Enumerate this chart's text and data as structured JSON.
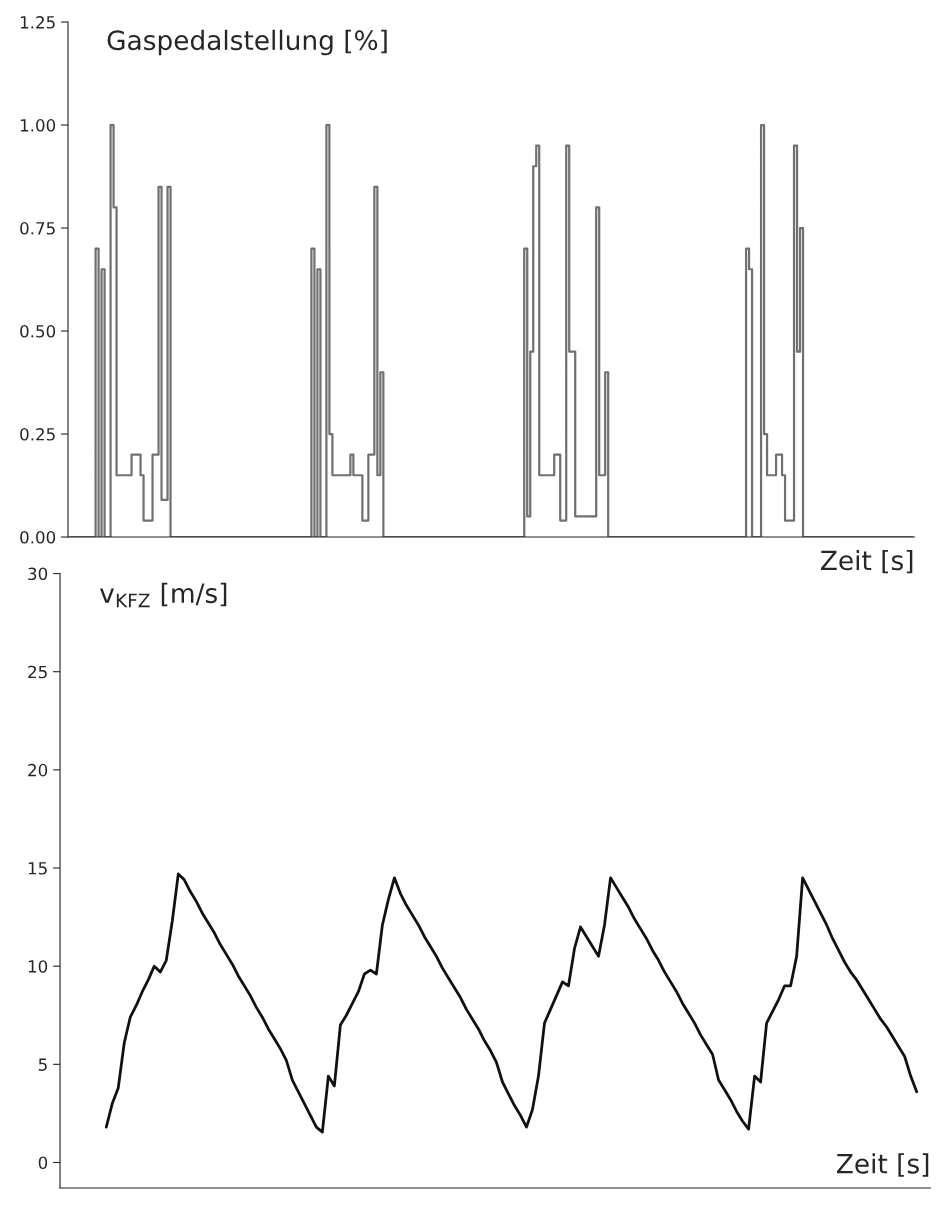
{
  "chart_data": [
    {
      "type": "step",
      "ylabel": "Gaspedalstellung [%]",
      "xlabel": "Zeit [s]",
      "ylim": [
        0,
        1.25
      ],
      "yticks": [
        {
          "value": 0,
          "label": "0.00"
        },
        {
          "value": 0.25,
          "label": "0.25"
        },
        {
          "value": 0.5,
          "label": "0.50"
        },
        {
          "value": 0.75,
          "label": "0.75"
        },
        {
          "value": 1,
          "label": "1.00"
        },
        {
          "value": 1.25,
          "label": "1.25"
        }
      ],
      "tick_labels": "y",
      "grid": false,
      "categories": [
        null,
        null,
        null,
        null,
        null,
        null,
        null,
        null,
        null,
        null,
        null,
        null,
        null,
        null,
        null,
        null,
        null,
        null,
        null,
        null,
        null,
        null,
        null,
        null,
        null,
        null,
        null,
        null,
        null,
        null,
        null,
        null,
        null,
        null,
        null,
        null,
        null,
        null,
        null,
        null,
        null,
        null,
        null,
        null,
        null,
        null,
        null,
        null,
        null,
        null,
        null,
        null,
        null,
        null,
        null,
        null,
        null,
        null,
        null,
        null,
        null,
        null,
        null,
        null,
        null,
        null,
        null,
        null,
        null,
        null,
        null,
        null,
        null,
        null,
        null,
        null,
        null,
        null,
        null,
        null,
        null,
        null,
        null,
        null,
        null,
        null,
        null,
        null,
        null,
        null,
        null,
        null,
        null,
        null,
        null,
        null,
        null,
        null,
        null,
        null,
        null,
        null,
        null,
        null,
        null,
        null,
        null,
        null,
        null,
        null,
        null,
        null,
        null,
        null,
        null,
        null,
        null,
        null,
        null,
        null,
        null,
        null,
        null,
        null,
        null,
        null,
        null,
        null,
        null,
        null,
        null,
        null,
        null,
        null,
        null,
        null,
        null,
        null,
        null,
        null,
        null,
        null,
        null,
        null,
        null,
        null,
        null,
        null,
        null,
        null,
        null,
        null,
        null,
        null,
        null,
        null,
        null,
        null,
        null,
        null,
        null,
        null,
        null,
        null,
        null,
        null,
        null,
        null,
        null,
        null,
        null,
        null,
        null,
        null,
        null,
        null,
        null,
        null,
        null,
        null,
        null,
        null,
        null,
        null,
        null,
        null,
        null,
        null,
        null,
        null,
        null,
        null,
        null,
        null,
        null,
        null,
        null,
        null,
        null,
        null,
        null,
        null,
        null,
        null,
        null,
        null,
        null,
        null,
        null,
        null,
        null,
        null,
        null,
        null,
        null,
        null,
        null,
        null,
        null,
        null,
        null,
        null,
        null,
        null,
        null,
        null,
        null,
        null,
        null,
        null,
        null,
        null,
        null,
        null,
        null,
        null,
        null,
        null,
        null,
        null,
        null,
        null,
        null,
        null,
        null,
        null,
        null,
        null,
        null,
        null,
        null,
        null,
        null,
        null,
        null,
        null,
        null,
        null,
        null,
        null,
        null,
        null,
        null,
        null,
        null,
        null,
        null,
        null,
        null,
        null,
        null,
        null,
        null,
        null,
        null,
        null,
        null,
        null,
        null,
        null,
        null,
        null
      ],
      "series": [
        {
          "color": "#707070",
          "values": [
            0,
            0,
            0,
            0,
            0,
            0,
            0,
            0,
            0,
            0.7,
            0,
            0.65,
            0,
            0,
            1.0,
            0.8,
            0.15,
            0.15,
            0.15,
            0.15,
            0.15,
            0.2,
            0.2,
            0.2,
            0.15,
            0.04,
            0.04,
            0.04,
            0.2,
            0.2,
            0.85,
            0.09,
            0.09,
            0.85,
            0,
            0,
            0,
            0,
            0,
            0,
            0,
            0,
            0,
            0,
            0,
            0,
            0,
            0,
            0,
            0,
            0,
            0,
            0,
            0,
            0,
            0,
            0,
            0,
            0,
            0,
            0,
            0,
            0,
            0,
            0,
            0,
            0,
            0,
            0,
            0,
            0,
            0,
            0,
            0,
            0,
            0,
            0,
            0,
            0,
            0,
            0,
            0.7,
            0,
            0.65,
            0,
            0,
            1.0,
            0.25,
            0.15,
            0.15,
            0.15,
            0.15,
            0.15,
            0.15,
            0.2,
            0.15,
            0.15,
            0.15,
            0.04,
            0.04,
            0.2,
            0.2,
            0.85,
            0.15,
            0.4,
            0,
            0,
            0,
            0,
            0,
            0,
            0,
            0,
            0,
            0,
            0,
            0,
            0,
            0,
            0,
            0,
            0,
            0,
            0,
            0,
            0,
            0,
            0,
            0,
            0,
            0,
            0,
            0,
            0,
            0,
            0,
            0,
            0,
            0,
            0,
            0,
            0,
            0,
            0,
            0,
            0,
            0,
            0,
            0,
            0,
            0,
            0,
            0.7,
            0.05,
            0.45,
            0.9,
            0.95,
            0.15,
            0.15,
            0.15,
            0.15,
            0.15,
            0.2,
            0.2,
            0.04,
            0.04,
            0.95,
            0.45,
            0.45,
            0.05,
            0.05,
            0.05,
            0.05,
            0.05,
            0.05,
            0.05,
            0.8,
            0.15,
            0.15,
            0.4,
            0,
            0,
            0,
            0,
            0,
            0,
            0,
            0,
            0,
            0,
            0,
            0,
            0,
            0,
            0,
            0,
            0,
            0,
            0,
            0,
            0,
            0,
            0,
            0,
            0,
            0,
            0,
            0,
            0,
            0,
            0,
            0,
            0,
            0,
            0,
            0,
            0,
            0,
            0,
            0,
            0,
            0,
            0,
            0,
            0,
            0,
            0.7,
            0.65,
            0,
            0,
            0,
            1.0,
            0.25,
            0.15,
            0.15,
            0.15,
            0.2,
            0.2,
            0.15,
            0.04,
            0.04,
            0.04,
            0.95,
            0.45,
            0.75,
            0,
            0,
            0,
            0,
            0,
            0,
            0,
            0,
            0,
            0,
            0,
            0,
            0,
            0,
            0,
            0,
            0,
            0,
            0,
            0,
            0,
            0,
            0,
            0,
            0,
            0,
            0,
            0,
            0,
            0,
            0,
            0,
            0,
            0,
            0,
            0,
            0
          ]
        }
      ]
    },
    {
      "type": "line",
      "ylabel": "v$_{KFZ}$ [m/s]",
      "xlabel": "Zeit [s]",
      "ylim": [
        -1.3,
        30
      ],
      "yticks": [
        0,
        5,
        10,
        15,
        20,
        25,
        30
      ],
      "tick_labels": "y",
      "grid": false,
      "categories": [
        null,
        null,
        null,
        null,
        null,
        null,
        null,
        null,
        null,
        null,
        null,
        null,
        null,
        null,
        null,
        null,
        null,
        null,
        null,
        null,
        null,
        null,
        null,
        null,
        null,
        null,
        null,
        null,
        null,
        null,
        null,
        null,
        null,
        null,
        null,
        null,
        null,
        null,
        null,
        null,
        null,
        null,
        null,
        null,
        null,
        null,
        null,
        null,
        null,
        null,
        null,
        null,
        null,
        null,
        null,
        null,
        null,
        null,
        null,
        null,
        null,
        null,
        null,
        null,
        null,
        null,
        null,
        null,
        null,
        null,
        null,
        null,
        null,
        null,
        null,
        null,
        null,
        null,
        null,
        null,
        null,
        null,
        null,
        null,
        null,
        null,
        null,
        null,
        null,
        null,
        null,
        null,
        null,
        null,
        null,
        null,
        null,
        null,
        null,
        null,
        null,
        null,
        null,
        null,
        null,
        null,
        null,
        null,
        null,
        null,
        null,
        null,
        null,
        null,
        null,
        null,
        null,
        null,
        null,
        null,
        null,
        null,
        null,
        null,
        null,
        null,
        null,
        null,
        null,
        null,
        null,
        null,
        null,
        null,
        null,
        null,
        null,
        null,
        null,
        null,
        null,
        null
      ],
      "series": [
        {
          "color": "#111111",
          "values": [
            null,
            null,
            null,
            null,
            null,
            null,
            1.8,
            3.0,
            3.8,
            6.1,
            7.4,
            8.0,
            8.7,
            9.3,
            10.0,
            9.7,
            10.3,
            12.3,
            14.7,
            14.4,
            13.8,
            13.3,
            12.7,
            12.2,
            11.7,
            11.1,
            10.6,
            10.1,
            9.5,
            9.0,
            8.5,
            7.9,
            7.4,
            6.8,
            6.3,
            5.8,
            5.2,
            4.2,
            3.6,
            3.0,
            2.4,
            1.8,
            1.55,
            4.4,
            3.9,
            7.0,
            7.5,
            8.1,
            8.7,
            9.6,
            9.8,
            9.6,
            12.1,
            13.4,
            14.5,
            13.7,
            13.1,
            12.6,
            12.1,
            11.5,
            11.0,
            10.5,
            9.9,
            9.4,
            8.9,
            8.4,
            7.8,
            7.3,
            6.8,
            6.2,
            5.7,
            5.1,
            4.1,
            3.5,
            2.9,
            2.4,
            1.8,
            2.7,
            4.4,
            7.1,
            7.8,
            8.5,
            9.2,
            9.0,
            10.9,
            12.0,
            11.5,
            11.0,
            10.5,
            12.1,
            14.5,
            14.0,
            13.5,
            13.0,
            12.4,
            11.9,
            11.4,
            10.8,
            10.3,
            9.7,
            9.2,
            8.7,
            8.1,
            7.6,
            7.1,
            6.5,
            6.0,
            5.5,
            4.2,
            3.7,
            3.2,
            2.6,
            2.1,
            1.7,
            4.4,
            4.1,
            7.1,
            7.7,
            8.3,
            9.0,
            9.0,
            10.5,
            14.5,
            13.9,
            13.3,
            12.7,
            12.1,
            11.4,
            10.8,
            10.2,
            9.7,
            9.3,
            8.8,
            8.3,
            7.8,
            7.3,
            6.9,
            6.4,
            5.9,
            5.4,
            4.4,
            3.6
          ]
        }
      ]
    }
  ]
}
